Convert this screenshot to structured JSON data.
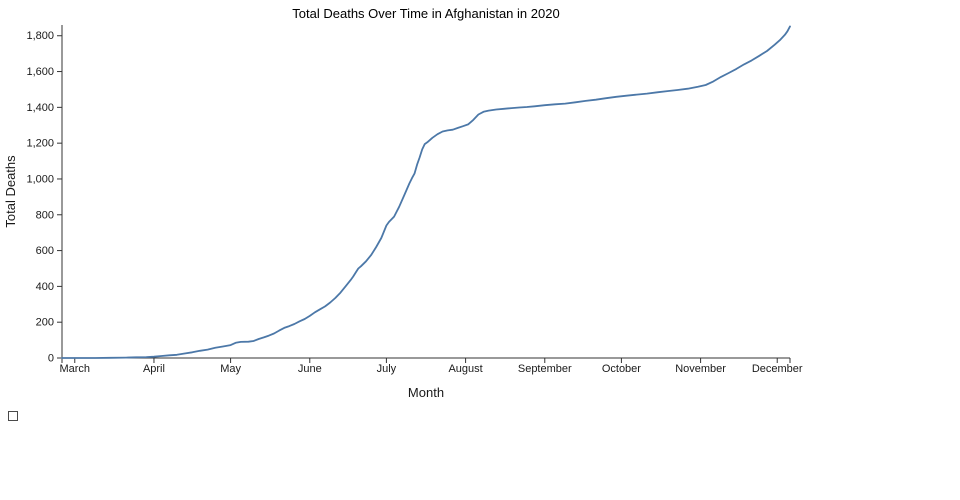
{
  "page": {
    "background": "#ffffff"
  },
  "chart_data": {
    "type": "line",
    "title": "Total Deaths Over Time in Afghanistan in 2020",
    "xlabel": "Month",
    "ylabel": "Total Deaths",
    "x_tick_labels": [
      "March",
      "April",
      "May",
      "June",
      "July",
      "August",
      "September",
      "October",
      "November",
      "December"
    ],
    "x_tick_days": [
      0,
      31,
      61,
      92,
      122,
      153,
      184,
      214,
      245,
      275
    ],
    "x_domain_days": [
      -5,
      280
    ],
    "ylim": [
      0,
      1860
    ],
    "y_ticks": [
      0,
      200,
      400,
      600,
      800,
      1000,
      1200,
      1400,
      1600,
      1800
    ],
    "grid": false,
    "legend_position": "none",
    "line_color": "#4c78a8",
    "axis_color": "#333333",
    "label_color": "#1a1a1a",
    "title_color": "#000000",
    "series_name": "Total Deaths",
    "points_day_value": [
      [
        -5,
        0
      ],
      [
        0,
        0
      ],
      [
        8,
        0
      ],
      [
        14,
        1
      ],
      [
        20,
        2
      ],
      [
        24,
        4
      ],
      [
        28,
        5
      ],
      [
        31,
        7
      ],
      [
        34,
        11
      ],
      [
        37,
        15
      ],
      [
        40,
        18
      ],
      [
        43,
        25
      ],
      [
        46,
        32
      ],
      [
        49,
        40
      ],
      [
        52,
        47
      ],
      [
        55,
        57
      ],
      [
        58,
        64
      ],
      [
        61,
        72
      ],
      [
        63,
        85
      ],
      [
        65,
        90
      ],
      [
        68,
        91
      ],
      [
        70,
        95
      ],
      [
        72,
        106
      ],
      [
        74,
        115
      ],
      [
        76,
        125
      ],
      [
        78,
        137
      ],
      [
        80,
        153
      ],
      [
        82,
        168
      ],
      [
        84,
        178
      ],
      [
        86,
        190
      ],
      [
        88,
        205
      ],
      [
        90,
        218
      ],
      [
        92,
        235
      ],
      [
        94,
        255
      ],
      [
        96,
        272
      ],
      [
        98,
        288
      ],
      [
        100,
        310
      ],
      [
        102,
        335
      ],
      [
        104,
        365
      ],
      [
        106,
        400
      ],
      [
        108,
        435
      ],
      [
        109,
        455
      ],
      [
        110,
        478
      ],
      [
        111,
        500
      ],
      [
        112,
        512
      ],
      [
        114,
        540
      ],
      [
        116,
        575
      ],
      [
        118,
        620
      ],
      [
        120,
        670
      ],
      [
        122,
        740
      ],
      [
        123,
        760
      ],
      [
        125,
        790
      ],
      [
        127,
        845
      ],
      [
        129,
        910
      ],
      [
        131,
        975
      ],
      [
        132,
        1005
      ],
      [
        133,
        1030
      ],
      [
        134,
        1080
      ],
      [
        135,
        1120
      ],
      [
        136,
        1165
      ],
      [
        137,
        1195
      ],
      [
        138,
        1205
      ],
      [
        140,
        1230
      ],
      [
        142,
        1250
      ],
      [
        144,
        1265
      ],
      [
        146,
        1271
      ],
      [
        148,
        1275
      ],
      [
        150,
        1285
      ],
      [
        152,
        1295
      ],
      [
        154,
        1305
      ],
      [
        156,
        1330
      ],
      [
        158,
        1360
      ],
      [
        160,
        1375
      ],
      [
        162,
        1382
      ],
      [
        165,
        1388
      ],
      [
        168,
        1392
      ],
      [
        171,
        1396
      ],
      [
        174,
        1399
      ],
      [
        177,
        1402
      ],
      [
        180,
        1406
      ],
      [
        184,
        1412
      ],
      [
        188,
        1417
      ],
      [
        192,
        1421
      ],
      [
        196,
        1428
      ],
      [
        200,
        1436
      ],
      [
        204,
        1443
      ],
      [
        208,
        1451
      ],
      [
        212,
        1459
      ],
      [
        216,
        1465
      ],
      [
        220,
        1471
      ],
      [
        224,
        1477
      ],
      [
        228,
        1484
      ],
      [
        232,
        1491
      ],
      [
        236,
        1497
      ],
      [
        240,
        1504
      ],
      [
        244,
        1515
      ],
      [
        247,
        1525
      ],
      [
        250,
        1545
      ],
      [
        253,
        1570
      ],
      [
        256,
        1592
      ],
      [
        259,
        1615
      ],
      [
        262,
        1640
      ],
      [
        265,
        1662
      ],
      [
        268,
        1688
      ],
      [
        271,
        1715
      ],
      [
        274,
        1750
      ],
      [
        276,
        1775
      ],
      [
        278,
        1805
      ],
      [
        279,
        1825
      ],
      [
        280,
        1852
      ]
    ]
  },
  "footer": {
    "checkbox_checked": false
  }
}
